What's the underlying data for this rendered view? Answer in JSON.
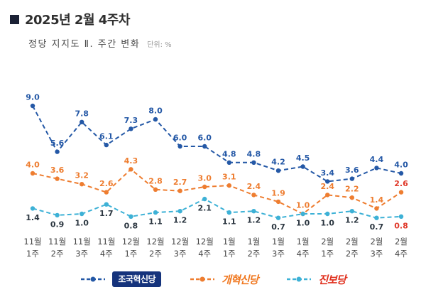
{
  "header": {
    "title": "2025년 2월 4주차",
    "subtitle": "정당 지지도 Ⅱ. 주간 변화",
    "unit_label": "단위: %"
  },
  "chart_data": {
    "type": "line",
    "title": "정당 지지도 주간 변화",
    "unit": "%",
    "ylim": [
      0,
      10
    ],
    "grid": false,
    "line_style": "dashed",
    "legend_position": "bottom",
    "categories": [
      "11월 1주",
      "11월 2주",
      "11월 3주",
      "11월 4주",
      "12월 1주",
      "12월 2주",
      "12월 3주",
      "12월 4주",
      "1월 1주",
      "1월 2주",
      "1월 3주",
      "1월 4주",
      "2월 1주",
      "2월 2주",
      "2월 3주",
      "2월 4주"
    ],
    "series": [
      {
        "name": "조국혁신당",
        "color": "#2458a6",
        "label_color": "#2458a6",
        "last_label_color": "#2458a6",
        "label_position": "above",
        "values": [
          9.0,
          5.6,
          7.8,
          6.1,
          7.3,
          8.0,
          6.0,
          6.0,
          4.8,
          4.8,
          4.2,
          4.5,
          3.4,
          3.6,
          4.4,
          4.0
        ]
      },
      {
        "name": "개혁신당",
        "color": "#ee7d30",
        "label_color": "#ee7d30",
        "last_label_color": "#e0392a",
        "label_position": "above",
        "values": [
          4.0,
          3.6,
          3.2,
          2.6,
          4.3,
          2.8,
          2.7,
          3.0,
          3.1,
          2.4,
          1.9,
          1.0,
          2.4,
          2.2,
          1.4,
          2.6
        ]
      },
      {
        "name": "진보당",
        "color": "#3db1d6",
        "label_color": "#2b3640",
        "last_label_color": "#e0392a",
        "label_position": "below",
        "values": [
          1.4,
          0.9,
          1.0,
          1.7,
          0.8,
          1.1,
          1.2,
          2.1,
          1.1,
          1.2,
          0.7,
          1.0,
          1.0,
          1.2,
          0.7,
          0.8
        ]
      }
    ]
  },
  "legend": {
    "items": [
      {
        "label": "조국혁신당",
        "style": "box",
        "text_color": "#ffffff",
        "bg_color": "#15337c"
      },
      {
        "label": "개혁신당",
        "style": "wordmark",
        "text_color": "#f07820",
        "bg_color": ""
      },
      {
        "label": "진보당",
        "style": "wordmark",
        "text_color": "#e0301e",
        "bg_color": ""
      }
    ]
  }
}
